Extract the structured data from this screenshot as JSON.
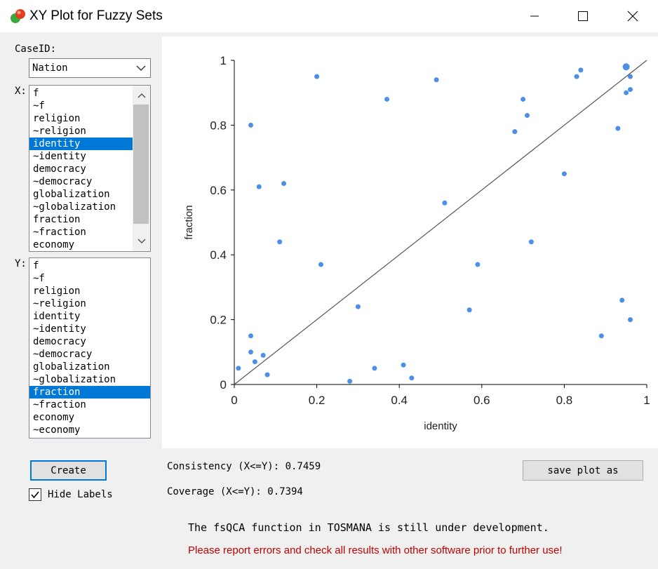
{
  "window": {
    "title": "XY Plot for Fuzzy Sets"
  },
  "caseid": {
    "label": "CaseID:",
    "value": "Nation"
  },
  "x_list": {
    "label": "X:",
    "items": [
      "f",
      "~f",
      "religion",
      "~religion",
      "identity",
      "~identity",
      "democracy",
      "~democracy",
      "globalization",
      "~globalization",
      "fraction",
      "~fraction",
      "economy"
    ],
    "selected": "identity"
  },
  "y_list": {
    "label": "Y:",
    "items": [
      "f",
      "~f",
      "religion",
      "~religion",
      "identity",
      "~identity",
      "democracy",
      "~democracy",
      "globalization",
      "~globalization",
      "fraction",
      "~fraction",
      "economy",
      "~economy"
    ],
    "selected": "fraction"
  },
  "buttons": {
    "create": "Create",
    "save": "save plot as"
  },
  "hide_labels": {
    "label": "Hide Labels",
    "checked": true
  },
  "stats": {
    "consistency": "Consistency (X<=Y): 0.7459",
    "coverage": "Coverage (X<=Y): 0.7394"
  },
  "messages": {
    "dev_note": "The fsQCA function in TOSMANA is still under development.",
    "warning": "Please report errors and check all results with other software prior to further use!"
  },
  "colors": {
    "points": "#4d8fe6",
    "selection": "#0078d7",
    "warning": "#c00000",
    "diagonal": "#555555"
  },
  "chart_data": {
    "type": "scatter",
    "xlabel": "identity",
    "ylabel": "fraction",
    "xlim": [
      0,
      1
    ],
    "ylim": [
      0,
      1
    ],
    "xticks": [
      "0",
      "0.2",
      "0.4",
      "0.6",
      "0.8",
      "1"
    ],
    "yticks": [
      "0",
      "0.2",
      "0.4",
      "0.6",
      "0.8",
      "1"
    ],
    "diagonal_line": true,
    "points": [
      [
        0.01,
        0.05
      ],
      [
        0.04,
        0.8
      ],
      [
        0.04,
        0.15
      ],
      [
        0.04,
        0.1
      ],
      [
        0.05,
        0.07
      ],
      [
        0.06,
        0.61
      ],
      [
        0.07,
        0.09
      ],
      [
        0.08,
        0.03
      ],
      [
        0.11,
        0.44
      ],
      [
        0.12,
        0.62
      ],
      [
        0.2,
        0.95
      ],
      [
        0.21,
        0.37
      ],
      [
        0.28,
        0.01
      ],
      [
        0.3,
        0.24
      ],
      [
        0.34,
        0.05
      ],
      [
        0.37,
        0.88
      ],
      [
        0.41,
        0.06
      ],
      [
        0.43,
        0.02
      ],
      [
        0.49,
        0.94
      ],
      [
        0.51,
        0.56
      ],
      [
        0.57,
        0.23
      ],
      [
        0.59,
        0.37
      ],
      [
        0.68,
        0.78
      ],
      [
        0.7,
        0.88
      ],
      [
        0.71,
        0.83
      ],
      [
        0.72,
        0.44
      ],
      [
        0.8,
        0.65
      ],
      [
        0.83,
        0.95
      ],
      [
        0.84,
        0.97
      ],
      [
        0.89,
        0.15
      ],
      [
        0.93,
        0.79
      ],
      [
        0.94,
        0.26
      ],
      [
        0.95,
        0.98
      ],
      [
        0.95,
        0.9
      ],
      [
        0.96,
        0.95
      ],
      [
        0.96,
        0.91
      ],
      [
        0.96,
        0.2
      ]
    ]
  }
}
